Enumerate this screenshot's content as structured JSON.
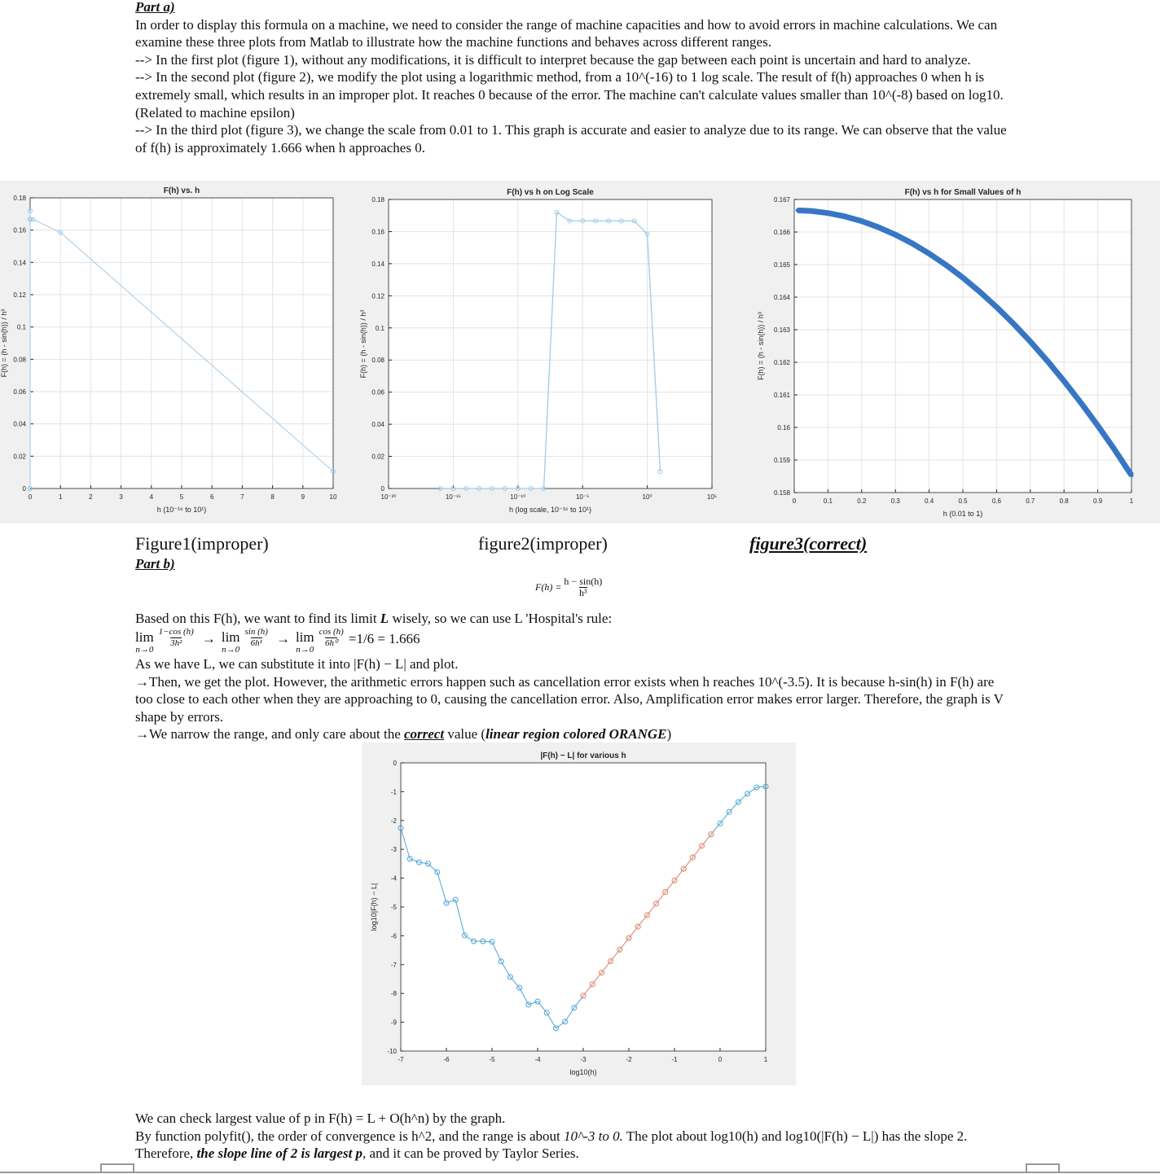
{
  "part_a": {
    "heading": "Part a)",
    "paragraphs": [
      "In order to display this formula on a machine, we need to consider the range of machine capacities and how to avoid errors in machine calculations. We can examine these three plots from Matlab to illustrate how the machine functions and behaves across different ranges.",
      "--> In the first plot (figure 1), without any modifications, it is difficult to interpret because the gap between each point is uncertain and hard to analyze.",
      "--> In the second plot (figure 2), we modify the plot using a logarithmic method, from a 10^(-16) to 1 log scale. The result of f(h) approaches 0 when h is extremely small, which results in an improper plot. It reaches 0 because of the error. The machine can't calculate values smaller than 10^(-8) based on log10. (Related to machine epsilon)",
      "--> In the third plot (figure 3), we change the scale from 0.01 to 1. This graph is accurate and easier to analyze due to its range. We can observe that the value of f(h) is approximately 1.666 when h approaches 0."
    ]
  },
  "captions": [
    "Figure1(improper)",
    "figure2(improper)",
    "figure3(correct)"
  ],
  "part_b": {
    "heading": "Part b)",
    "formula": {
      "lhs": "F(h) =",
      "numerator": "h − sin(h)",
      "denominator": "h³"
    },
    "intro": [
      "Based on this F(h), we want to find its limit ",
      "L",
      " wisely, so we can use L 'Hospital's rule:"
    ],
    "limit": {
      "lim": "lim",
      "sub": "n→0",
      "arrow": "→",
      "steps": [
        {
          "num": "1−cos (h)",
          "den": "3h²"
        },
        {
          "num": "sin (h)",
          "den": "6h¹"
        },
        {
          "num": "cos (h)",
          "den": "6h⁰"
        }
      ],
      "result": "=1/6 = 1.666"
    },
    "paragraphs": [
      "As we have L, we can substitute it into |F(h) − L| and plot.",
      "→Then, we get the plot. However, the arithmetic errors happen such as cancellation error exists when h reaches 10^(-3.5). It is because h-sin(h) in F(h) are too close to each other when they are approaching to 0, causing the cancellation error. Also, Amplification error makes error larger. Therefore, the graph is V shape by errors."
    ],
    "narrow": [
      "→We narrow the range, and only care about the ",
      "correct",
      " value (",
      "linear region colored ORANGE",
      ")"
    ],
    "conclusion": [
      "We can check largest value of p in F(h) = L + O(h^n) by the graph.",
      "By function polyfit(), the order of convergence is h^2, and the range is about ",
      "10^-3 to 0.",
      " The plot about log10(h) and log10(|F(h) − L|) has the slope 2. Therefore, ",
      "the slope line of 2 is largest p",
      ", and it can be proved by Taylor Series."
    ]
  },
  "chart_data": [
    {
      "type": "line",
      "title": "F(h) vs. h",
      "x_label": "h (10⁻¹⁶ to 10¹)",
      "y_label": "F(h) = (h - sin(h)) / h³",
      "grid": true,
      "markers": true,
      "x": [
        1e-16,
        1e-15,
        1e-14,
        1e-13,
        1e-12,
        1e-11,
        1e-10,
        1e-09,
        1e-08,
        1e-07,
        1e-06,
        1e-05,
        0.0001,
        0.001,
        0.01,
        0.1,
        1,
        10
      ],
      "series": [
        {
          "color": "#9fcbea",
          "values": [
            0,
            0,
            0,
            0,
            0,
            0,
            0,
            0,
            0,
            0.172,
            0.1667,
            0.1667,
            0.1667,
            0.1667,
            0.1667,
            0.1666,
            0.1585,
            0.0105
          ]
        }
      ],
      "xlim": [
        0,
        10
      ],
      "xticks": [
        0,
        1,
        2,
        3,
        4,
        5,
        6,
        7,
        8,
        9,
        10
      ],
      "ylim": [
        0,
        0.18
      ],
      "yticks": [
        0,
        0.02,
        0.04,
        0.06,
        0.08,
        0.1,
        0.12,
        0.14,
        0.16,
        0.18
      ]
    },
    {
      "type": "line",
      "title": "F(h) vs h on Log Scale",
      "x_label": "h (log scale, 10⁻¹⁶ to 10¹)",
      "y_label": "F(h) = (h - sin(h)) / h³",
      "grid": true,
      "markers": true,
      "x_scale": "log",
      "x": [
        1e-16,
        1e-15,
        1e-14,
        1e-13,
        1e-12,
        1e-11,
        1e-10,
        1e-09,
        1e-08,
        1e-07,
        1e-06,
        1e-05,
        0.0001,
        0.001,
        0.01,
        0.1,
        1,
        10
      ],
      "series": [
        {
          "color": "#9fcbea",
          "values": [
            0,
            0,
            0,
            0,
            0,
            0,
            0,
            0,
            0,
            0.172,
            0.1667,
            0.1667,
            0.1667,
            0.1667,
            0.1667,
            0.1666,
            0.1585,
            0.0105
          ]
        }
      ],
      "xlim": [
        1e-20,
        100000.0
      ],
      "xticks": [
        {
          "value": 1e-20,
          "label": "10⁻²⁰"
        },
        {
          "value": 1e-15,
          "label": "10⁻¹⁵"
        },
        {
          "value": 1e-10,
          "label": "10⁻¹⁰"
        },
        {
          "value": 1e-05,
          "label": "10⁻⁵"
        },
        {
          "value": 1,
          "label": "10⁰"
        },
        {
          "value": 100000.0,
          "label": "10⁵"
        }
      ],
      "ylim": [
        0,
        0.18
      ],
      "yticks": [
        0,
        0.02,
        0.04,
        0.06,
        0.08,
        0.1,
        0.12,
        0.14,
        0.16,
        0.18
      ]
    },
    {
      "type": "line",
      "title": "F(h) vs h for Small Values of h",
      "x_label": "h (0.01 to 1)",
      "y_label": "F(h) = (h - sin(h)) / h³",
      "grid": true,
      "markers": true,
      "x": [
        0.01,
        0.05,
        0.1,
        0.15,
        0.2,
        0.25,
        0.3,
        0.35,
        0.4,
        0.45,
        0.5,
        0.55,
        0.6,
        0.65,
        0.7,
        0.75,
        0.8,
        0.85,
        0.9,
        0.95,
        1
      ],
      "series": [
        {
          "color": "#3776c4",
          "values": [
            0.166666,
            0.166646,
            0.166583,
            0.166479,
            0.166334,
            0.166146,
            0.165918,
            0.165649,
            0.165339,
            0.164988,
            0.164598,
            0.164167,
            0.163696,
            0.163186,
            0.162637,
            0.162049,
            0.161422,
            0.160757,
            0.160055,
            0.159315,
            0.158529
          ]
        }
      ],
      "xlim": [
        0,
        1
      ],
      "xticks": [
        0,
        0.1,
        0.2,
        0.3,
        0.4,
        0.5,
        0.6,
        0.7,
        0.8,
        0.9,
        1
      ],
      "ylim": [
        0.158,
        0.167
      ],
      "yticks": [
        0.158,
        0.159,
        0.16,
        0.161,
        0.162,
        0.163,
        0.164,
        0.165,
        0.166,
        0.167
      ]
    },
    {
      "type": "line",
      "title": "|F(h) − L| for various h",
      "x_label": "log10(h)",
      "y_label": "log10|F(h) − L|",
      "grid": false,
      "markers": true,
      "x": [
        -7,
        -6.8,
        -6.6,
        -6.4,
        -6.2,
        -6,
        -5.8,
        -5.6,
        -5.4,
        -5.2,
        -5,
        -4.8,
        -4.6,
        -4.4,
        -4.2,
        -4,
        -3.8,
        -3.6,
        -3.4,
        -3.2,
        -3,
        -2.8,
        -2.6,
        -2.4,
        -2.2,
        -2,
        -1.8,
        -1.6,
        -1.4,
        -1.2,
        -1,
        -0.8,
        -0.6,
        -0.4,
        -0.2,
        0,
        0.2,
        0.4,
        0.6,
        0.8,
        1
      ],
      "series": [
        {
          "color": "#4fa3d8",
          "values": [
            -2.26,
            -3.33,
            -3.45,
            -3.5,
            -3.79,
            -4.86,
            -4.75,
            -5.99,
            -6.19,
            -6.19,
            -6.21,
            -6.89,
            -7.43,
            -7.8,
            -8.39,
            -8.28,
            -8.67,
            -9.21,
            -8.98,
            -8.5,
            -8.08,
            -7.68,
            -7.28,
            -6.88,
            -6.48,
            -6.08,
            -5.68,
            -5.28,
            -4.88,
            -4.48,
            -4.08,
            -3.68,
            -3.28,
            -2.88,
            -2.48,
            -2.1,
            -1.7,
            -1.36,
            -1.07,
            -0.85,
            -0.82
          ]
        },
        {
          "color": "#f28e6b",
          "values": [
            null,
            null,
            null,
            null,
            null,
            null,
            null,
            null,
            null,
            null,
            null,
            null,
            null,
            null,
            null,
            null,
            null,
            null,
            null,
            null,
            -8.08,
            -7.68,
            -7.28,
            -6.88,
            -6.48,
            -6.08,
            -5.68,
            -5.28,
            -4.88,
            -4.48,
            -4.08,
            -3.68,
            -3.28,
            -2.88,
            -2.48,
            null,
            null,
            null,
            null,
            null,
            null
          ]
        }
      ],
      "xlim": [
        -7,
        1
      ],
      "xticks": [
        -7,
        -6,
        -5,
        -4,
        -3,
        -2,
        -1,
        0,
        1
      ],
      "ylim": [
        -10,
        0
      ],
      "yticks": [
        -10,
        -9,
        -8,
        -7,
        -6,
        -5,
        -4,
        -3,
        -2,
        -1,
        0
      ]
    }
  ]
}
